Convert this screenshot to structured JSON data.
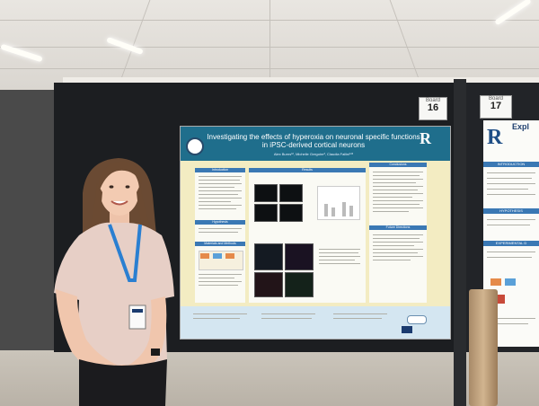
{
  "poster": {
    "title": "Investigating the effects of hyperoxia on neuronal specific functions in iPSC-derived cortical neurons",
    "authors": "Alex Burns¹², Michelle Gregoire³, Claudia Fallini¹²³",
    "logo_right": "R",
    "sections": [
      "Introduction",
      "Results",
      "Conclusions",
      "Hypothesis",
      "Future Directions",
      "Materials and Methods"
    ]
  },
  "neighbor_poster": {
    "title": "Expl",
    "logo": "R",
    "sections": [
      "INTRODUCTION",
      "HYPOTHESIS",
      "EXPERIMENTAL D"
    ]
  },
  "booth_numbers": {
    "left": "16",
    "right": "17",
    "label": "Board"
  },
  "colors": {
    "poster_header": "#1f6e8c",
    "poster_background": "#f3ecc2",
    "section_header": "#3a78b4",
    "shirt": "#e7cfc6",
    "lanyard": "#2a7fd1"
  }
}
